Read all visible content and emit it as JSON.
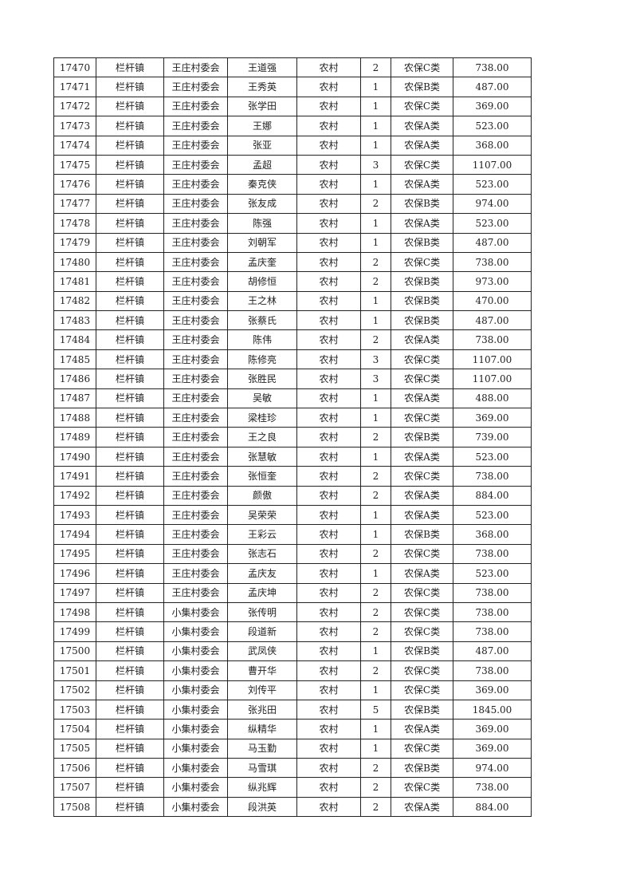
{
  "rows": [
    [
      "17470",
      "栏杆镇",
      "王庄村委会",
      "王道强",
      "农村",
      "2",
      "农保C类",
      "738.00"
    ],
    [
      "17471",
      "栏杆镇",
      "王庄村委会",
      "王秀英",
      "农村",
      "1",
      "农保B类",
      "487.00"
    ],
    [
      "17472",
      "栏杆镇",
      "王庄村委会",
      "张学田",
      "农村",
      "1",
      "农保C类",
      "369.00"
    ],
    [
      "17473",
      "栏杆镇",
      "王庄村委会",
      "王娜",
      "农村",
      "1",
      "农保A类",
      "523.00"
    ],
    [
      "17474",
      "栏杆镇",
      "王庄村委会",
      "张亚",
      "农村",
      "1",
      "农保A类",
      "368.00"
    ],
    [
      "17475",
      "栏杆镇",
      "王庄村委会",
      "孟超",
      "农村",
      "3",
      "农保C类",
      "1107.00"
    ],
    [
      "17476",
      "栏杆镇",
      "王庄村委会",
      "秦克侠",
      "农村",
      "1",
      "农保A类",
      "523.00"
    ],
    [
      "17477",
      "栏杆镇",
      "王庄村委会",
      "张友成",
      "农村",
      "2",
      "农保B类",
      "974.00"
    ],
    [
      "17478",
      "栏杆镇",
      "王庄村委会",
      "陈强",
      "农村",
      "1",
      "农保A类",
      "523.00"
    ],
    [
      "17479",
      "栏杆镇",
      "王庄村委会",
      "刘朝军",
      "农村",
      "1",
      "农保B类",
      "487.00"
    ],
    [
      "17480",
      "栏杆镇",
      "王庄村委会",
      "孟庆奎",
      "农村",
      "2",
      "农保C类",
      "738.00"
    ],
    [
      "17481",
      "栏杆镇",
      "王庄村委会",
      "胡修恒",
      "农村",
      "2",
      "农保B类",
      "973.00"
    ],
    [
      "17482",
      "栏杆镇",
      "王庄村委会",
      "王之林",
      "农村",
      "1",
      "农保B类",
      "470.00"
    ],
    [
      "17483",
      "栏杆镇",
      "王庄村委会",
      "张蔡氏",
      "农村",
      "1",
      "农保B类",
      "487.00"
    ],
    [
      "17484",
      "栏杆镇",
      "王庄村委会",
      "陈伟",
      "农村",
      "2",
      "农保A类",
      "738.00"
    ],
    [
      "17485",
      "栏杆镇",
      "王庄村委会",
      "陈修亮",
      "农村",
      "3",
      "农保C类",
      "1107.00"
    ],
    [
      "17486",
      "栏杆镇",
      "王庄村委会",
      "张胜民",
      "农村",
      "3",
      "农保C类",
      "1107.00"
    ],
    [
      "17487",
      "栏杆镇",
      "王庄村委会",
      "吴敏",
      "农村",
      "1",
      "农保A类",
      "488.00"
    ],
    [
      "17488",
      "栏杆镇",
      "王庄村委会",
      "梁桂珍",
      "农村",
      "1",
      "农保C类",
      "369.00"
    ],
    [
      "17489",
      "栏杆镇",
      "王庄村委会",
      "王之良",
      "农村",
      "2",
      "农保B类",
      "739.00"
    ],
    [
      "17490",
      "栏杆镇",
      "王庄村委会",
      "张慧敏",
      "农村",
      "1",
      "农保A类",
      "523.00"
    ],
    [
      "17491",
      "栏杆镇",
      "王庄村委会",
      "张恒奎",
      "农村",
      "2",
      "农保C类",
      "738.00"
    ],
    [
      "17492",
      "栏杆镇",
      "王庄村委会",
      "颜傲",
      "农村",
      "2",
      "农保A类",
      "884.00"
    ],
    [
      "17493",
      "栏杆镇",
      "王庄村委会",
      "吴荣荣",
      "农村",
      "1",
      "农保A类",
      "523.00"
    ],
    [
      "17494",
      "栏杆镇",
      "王庄村委会",
      "王彩云",
      "农村",
      "1",
      "农保B类",
      "368.00"
    ],
    [
      "17495",
      "栏杆镇",
      "王庄村委会",
      "张志石",
      "农村",
      "2",
      "农保C类",
      "738.00"
    ],
    [
      "17496",
      "栏杆镇",
      "王庄村委会",
      "孟庆友",
      "农村",
      "1",
      "农保A类",
      "523.00"
    ],
    [
      "17497",
      "栏杆镇",
      "王庄村委会",
      "孟庆坤",
      "农村",
      "2",
      "农保C类",
      "738.00"
    ],
    [
      "17498",
      "栏杆镇",
      "小集村委会",
      "张传明",
      "农村",
      "2",
      "农保C类",
      "738.00"
    ],
    [
      "17499",
      "栏杆镇",
      "小集村委会",
      "段道新",
      "农村",
      "2",
      "农保C类",
      "738.00"
    ],
    [
      "17500",
      "栏杆镇",
      "小集村委会",
      "武凤侠",
      "农村",
      "1",
      "农保B类",
      "487.00"
    ],
    [
      "17501",
      "栏杆镇",
      "小集村委会",
      "曹开华",
      "农村",
      "2",
      "农保C类",
      "738.00"
    ],
    [
      "17502",
      "栏杆镇",
      "小集村委会",
      "刘传平",
      "农村",
      "1",
      "农保C类",
      "369.00"
    ],
    [
      "17503",
      "栏杆镇",
      "小集村委会",
      "张兆田",
      "农村",
      "5",
      "农保B类",
      "1845.00"
    ],
    [
      "17504",
      "栏杆镇",
      "小集村委会",
      "纵精华",
      "农村",
      "1",
      "农保A类",
      "369.00"
    ],
    [
      "17505",
      "栏杆镇",
      "小集村委会",
      "马玉勤",
      "农村",
      "1",
      "农保C类",
      "369.00"
    ],
    [
      "17506",
      "栏杆镇",
      "小集村委会",
      "马雪琪",
      "农村",
      "2",
      "农保B类",
      "974.00"
    ],
    [
      "17507",
      "栏杆镇",
      "小集村委会",
      "纵兆辉",
      "农村",
      "2",
      "农保C类",
      "738.00"
    ],
    [
      "17508",
      "栏杆镇",
      "小集村委会",
      "段洪英",
      "农村",
      "2",
      "农保A类",
      "884.00"
    ]
  ]
}
